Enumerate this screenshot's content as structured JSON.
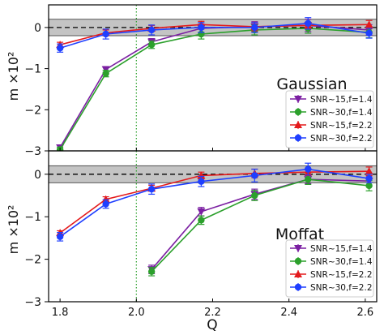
{
  "chart_data": [
    {
      "type": "line",
      "panel_label": "Gaussian",
      "xlabel": "Q",
      "ylabel": "m ×10²",
      "xlim": [
        1.77,
        2.63
      ],
      "ylim": [
        -3.0,
        0.55
      ],
      "yticks": [
        "0",
        "−1",
        "−2",
        "−3"
      ],
      "ytick_values": [
        0,
        -1,
        -2,
        -3
      ],
      "reference_line": 0,
      "shaded_band": [
        -0.2,
        0.2
      ],
      "vertical_line": 2.0,
      "legend_position": "lower-right",
      "series": [
        {
          "name": "SNR~15,f=1.4",
          "color": "#7b1fa2",
          "marker": "triangle-down",
          "x": [
            1.8,
            1.92,
            2.04,
            2.17,
            2.31,
            2.45,
            2.61
          ],
          "y": [
            -2.92,
            -1.02,
            -0.35,
            -0.02,
            0.02,
            0.05,
            -0.06
          ],
          "err": [
            0.06,
            0.07,
            0.08,
            0.1,
            0.12,
            0.15,
            0.13
          ]
        },
        {
          "name": "SNR~30,f=1.4",
          "color": "#2ca02c",
          "marker": "circle",
          "x": [
            1.8,
            1.92,
            2.04,
            2.17,
            2.31,
            2.45,
            2.61
          ],
          "y": [
            -2.97,
            -1.12,
            -0.42,
            -0.16,
            -0.06,
            -0.02,
            -0.12
          ],
          "err": [
            0.06,
            0.08,
            0.09,
            0.12,
            0.12,
            0.12,
            0.13
          ]
        },
        {
          "name": "SNR~15,f=2.2",
          "color": "#e41a1c",
          "marker": "triangle-up",
          "x": [
            1.8,
            1.92,
            2.04,
            2.17,
            2.31,
            2.45,
            2.61
          ],
          "y": [
            -0.42,
            -0.13,
            -0.02,
            0.07,
            0.02,
            0.05,
            0.07
          ],
          "err": [
            0.06,
            0.07,
            0.07,
            0.08,
            0.1,
            0.08,
            0.1
          ]
        },
        {
          "name": "SNR~30,f=2.2",
          "color": "#1f3fff",
          "marker": "circle",
          "x": [
            1.8,
            1.92,
            2.04,
            2.17,
            2.31,
            2.45,
            2.61
          ],
          "y": [
            -0.5,
            -0.16,
            -0.06,
            0.0,
            0.0,
            0.1,
            -0.14
          ],
          "err": [
            0.1,
            0.12,
            0.12,
            0.12,
            0.12,
            0.14,
            0.12
          ]
        }
      ]
    },
    {
      "type": "line",
      "panel_label": "Moffat",
      "xlabel": "Q",
      "ylabel": "m ×10²",
      "xlim": [
        1.77,
        2.63
      ],
      "ylim": [
        -3.0,
        0.55
      ],
      "xticks": [
        "1.8",
        "2.0",
        "2.2",
        "2.4",
        "2.6"
      ],
      "xtick_values": [
        1.8,
        2.0,
        2.2,
        2.4,
        2.6
      ],
      "yticks": [
        "0",
        "−1",
        "−2",
        "−3"
      ],
      "ytick_values": [
        0,
        -1,
        -2,
        -3
      ],
      "reference_line": 0,
      "shaded_band": [
        -0.2,
        0.2
      ],
      "vertical_line": 2.0,
      "legend_position": "lower-right",
      "series": [
        {
          "name": "SNR~15,f=1.4",
          "color": "#7b1fa2",
          "marker": "triangle-down",
          "x": [
            2.04,
            2.17,
            2.31,
            2.45,
            2.61
          ],
          "y": [
            -2.24,
            -0.88,
            -0.47,
            -0.12,
            -0.16
          ],
          "err": [
            0.1,
            0.1,
            0.12,
            0.1,
            0.12
          ]
        },
        {
          "name": "SNR~30,f=1.4",
          "color": "#2ca02c",
          "marker": "circle",
          "x": [
            2.04,
            2.17,
            2.31,
            2.45,
            2.61
          ],
          "y": [
            -2.29,
            -1.08,
            -0.5,
            -0.12,
            -0.27
          ],
          "err": [
            0.1,
            0.1,
            0.12,
            0.12,
            0.12
          ]
        },
        {
          "name": "SNR~15,f=2.2",
          "color": "#e41a1c",
          "marker": "triangle-up",
          "x": [
            1.8,
            1.92,
            2.04,
            2.17,
            2.31,
            2.45,
            2.61
          ],
          "y": [
            -1.38,
            -0.59,
            -0.33,
            -0.03,
            0.02,
            0.05,
            0.07
          ],
          "err": [
            0.05,
            0.06,
            0.07,
            0.08,
            0.1,
            0.08,
            0.1
          ]
        },
        {
          "name": "SNR~30,f=2.2",
          "color": "#1f3fff",
          "marker": "circle",
          "x": [
            1.8,
            1.92,
            2.04,
            2.17,
            2.31,
            2.45,
            2.61
          ],
          "y": [
            -1.47,
            -0.7,
            -0.35,
            -0.17,
            -0.03,
            0.12,
            -0.1
          ],
          "err": [
            0.1,
            0.1,
            0.12,
            0.12,
            0.15,
            0.14,
            0.1
          ]
        }
      ]
    }
  ]
}
